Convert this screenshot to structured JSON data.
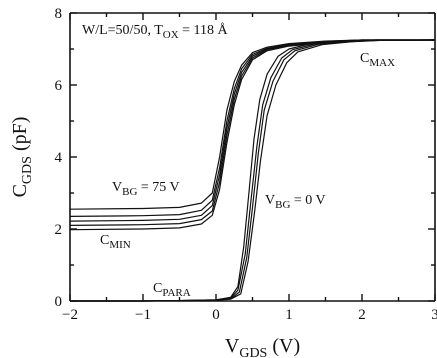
{
  "chart_data": {
    "type": "line",
    "xlabel": {
      "main": "V",
      "sub": "GDS",
      "unit": " (V)"
    },
    "ylabel": {
      "main": "C",
      "sub": "GDS",
      "unit": " (pF)"
    },
    "xlim": [
      -2,
      3
    ],
    "ylim": [
      0,
      8
    ],
    "xticks": [
      -2,
      -1,
      0,
      1,
      2,
      3
    ],
    "yticks": [
      0,
      2,
      4,
      6,
      8
    ],
    "grid": false,
    "annotations": {
      "top": {
        "a": "W/L=50/50, T",
        "a_sub": "OX",
        "b": " = 118 Å"
      },
      "cmax": {
        "main": "C",
        "sub": "MAX"
      },
      "vbg75": {
        "main": "V",
        "sub": "BG",
        "rest": " = 75 V"
      },
      "cmin": {
        "main": "C",
        "sub": "MIN"
      },
      "vbg0": {
        "main": "V",
        "sub": "BG",
        "rest": " = 0 V"
      },
      "cpara": {
        "main": "C",
        "sub": "PARA"
      }
    },
    "series": [
      {
        "x": [
          -2,
          -1,
          -0.5,
          -0.2,
          -0.05,
          0.05,
          0.15,
          0.25,
          0.35,
          0.5,
          0.7,
          1.0,
          1.5,
          2.0,
          3.0
        ],
        "y": [
          2.55,
          2.57,
          2.6,
          2.72,
          3.0,
          4.0,
          5.3,
          6.1,
          6.55,
          6.9,
          7.05,
          7.15,
          7.22,
          7.25,
          7.25
        ]
      },
      {
        "x": [
          -2,
          -1,
          -0.5,
          -0.2,
          -0.05,
          0.05,
          0.15,
          0.25,
          0.35,
          0.5,
          0.7,
          1.0,
          1.5,
          2.0,
          3.0
        ],
        "y": [
          2.35,
          2.37,
          2.4,
          2.52,
          2.8,
          3.7,
          5.0,
          5.9,
          6.45,
          6.85,
          7.02,
          7.13,
          7.21,
          7.25,
          7.25
        ]
      },
      {
        "x": [
          -2,
          -1,
          -0.5,
          -0.2,
          -0.05,
          0.05,
          0.15,
          0.25,
          0.35,
          0.5,
          0.7,
          1.0,
          1.5,
          2.0,
          3.0
        ],
        "y": [
          2.22,
          2.24,
          2.27,
          2.38,
          2.65,
          3.5,
          4.8,
          5.75,
          6.35,
          6.8,
          7.0,
          7.12,
          7.2,
          7.25,
          7.25
        ]
      },
      {
        "x": [
          -2,
          -1,
          -0.5,
          -0.2,
          -0.05,
          0.05,
          0.15,
          0.25,
          0.35,
          0.5,
          0.7,
          1.0,
          1.5,
          2.0,
          3.0
        ],
        "y": [
          2.1,
          2.12,
          2.15,
          2.26,
          2.5,
          3.3,
          4.6,
          5.6,
          6.25,
          6.75,
          6.98,
          7.1,
          7.19,
          7.24,
          7.25
        ]
      },
      {
        "x": [
          -2,
          -1,
          -0.5,
          -0.2,
          -0.05,
          0.05,
          0.15,
          0.25,
          0.35,
          0.5,
          0.7,
          1.0,
          1.5,
          2.0,
          3.0
        ],
        "y": [
          1.98,
          2.0,
          2.03,
          2.14,
          2.38,
          3.1,
          4.4,
          5.45,
          6.15,
          6.7,
          6.95,
          7.08,
          7.18,
          7.24,
          7.25
        ]
      },
      {
        "x": [
          -2,
          -1,
          -0.5,
          0,
          0.2,
          0.3,
          0.38,
          0.45,
          0.52,
          0.6,
          0.7,
          0.85,
          1.0,
          1.3,
          1.7,
          2.2,
          3.0
        ],
        "y": [
          0,
          0,
          0.01,
          0.03,
          0.1,
          0.4,
          1.5,
          3.0,
          4.5,
          5.6,
          6.3,
          6.8,
          7.0,
          7.15,
          7.22,
          7.25,
          7.25
        ]
      },
      {
        "x": [
          -2,
          -1,
          -0.5,
          0,
          0.2,
          0.3,
          0.4,
          0.48,
          0.56,
          0.64,
          0.75,
          0.9,
          1.05,
          1.35,
          1.75,
          2.2,
          3.0
        ],
        "y": [
          0,
          0,
          0.01,
          0.03,
          0.08,
          0.3,
          1.3,
          2.8,
          4.3,
          5.45,
          6.2,
          6.75,
          6.98,
          7.14,
          7.21,
          7.25,
          7.25
        ]
      },
      {
        "x": [
          -2,
          -1,
          -0.5,
          0,
          0.2,
          0.32,
          0.42,
          0.5,
          0.58,
          0.66,
          0.78,
          0.93,
          1.08,
          1.4,
          1.8,
          2.2,
          3.0
        ],
        "y": [
          0,
          0,
          0.01,
          0.02,
          0.06,
          0.25,
          1.2,
          2.6,
          4.1,
          5.3,
          6.1,
          6.7,
          6.95,
          7.13,
          7.2,
          7.24,
          7.25
        ]
      },
      {
        "x": [
          -2,
          -1,
          -0.5,
          0,
          0.2,
          0.34,
          0.44,
          0.53,
          0.61,
          0.7,
          0.82,
          0.97,
          1.12,
          1.45,
          1.85,
          2.25,
          3.0
        ],
        "y": [
          0,
          0,
          0.01,
          0.02,
          0.05,
          0.2,
          1.1,
          2.5,
          3.9,
          5.15,
          6.0,
          6.62,
          6.92,
          7.12,
          7.2,
          7.24,
          7.25
        ]
      }
    ]
  }
}
